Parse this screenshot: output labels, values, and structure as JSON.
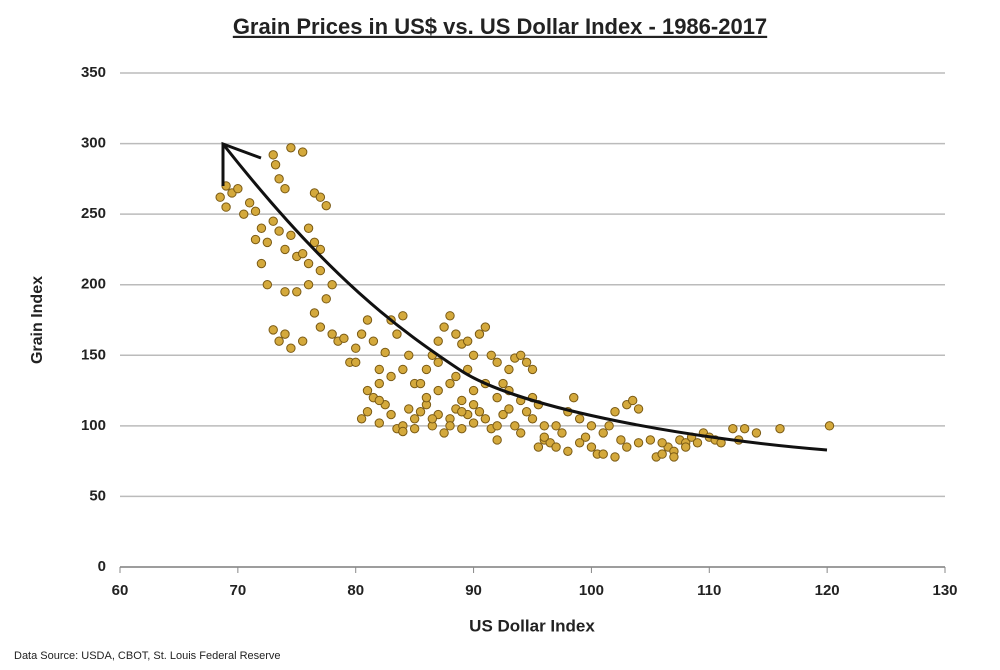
{
  "chart_data": {
    "type": "scatter",
    "title": "Grain Prices in US$ vs. US Dollar Index - 1986-2017",
    "xlabel": "US Dollar Index",
    "ylabel": "Grain Index",
    "source": "Data Source: USDA, CBOT, St. Louis Federal Reserve",
    "color": "#d4a93c",
    "grid": true,
    "xlim": [
      60,
      130
    ],
    "xticks": [
      60,
      70,
      80,
      90,
      100,
      110,
      120,
      130
    ],
    "ylim": [
      0,
      350
    ],
    "yticks": [
      0,
      50,
      100,
      150,
      200,
      250,
      300,
      350
    ],
    "x": [
      68.5,
      69,
      69.5,
      70,
      70.5,
      71,
      71.5,
      69,
      72,
      72.5,
      71.5,
      72,
      72.5,
      73,
      73.2,
      73.5,
      74,
      74.5,
      75.5,
      73,
      73.5,
      74,
      74.5,
      75,
      73,
      73.5,
      74,
      74.5,
      75,
      75.5,
      76,
      76.5,
      77,
      77.5,
      76.5,
      77,
      76,
      76.5,
      77,
      77.5,
      78,
      78.5,
      76,
      75.5,
      74,
      77,
      78,
      79,
      79.5,
      80,
      80.5,
      81,
      81.5,
      82,
      82.5,
      83,
      83.5,
      84,
      84.5,
      80.5,
      81,
      81.5,
      82,
      82.5,
      83,
      83.5,
      84,
      84.5,
      85,
      81,
      82,
      83,
      84,
      85,
      80,
      82,
      84,
      85,
      85.5,
      86,
      86.5,
      87,
      87.5,
      88,
      88.5,
      89,
      89.5,
      90,
      86,
      86.5,
      87,
      87.5,
      88,
      88.5,
      89,
      89.5,
      90,
      86,
      87,
      88,
      89,
      90,
      85.5,
      87,
      88.5,
      89.5,
      90,
      86.5,
      88,
      89,
      90.5,
      91,
      91.5,
      92,
      92.5,
      93,
      93.5,
      94,
      94.5,
      95,
      90.5,
      91,
      91.5,
      92,
      92.5,
      93,
      93.5,
      94,
      94.5,
      95,
      95.5,
      96,
      91,
      92,
      93,
      94,
      95,
      95.5,
      96,
      92,
      96.5,
      97,
      97.5,
      98,
      98.5,
      99,
      99.5,
      100,
      100.5,
      101,
      101.5,
      102,
      102.5,
      103,
      103.5,
      104,
      97,
      98,
      99,
      100,
      101,
      102,
      103,
      104,
      96,
      105,
      105.5,
      106,
      106.5,
      107,
      107.5,
      108,
      108.5,
      109,
      109.5,
      110,
      110.5,
      111,
      112,
      112.5,
      113,
      114,
      116,
      120.2,
      106,
      107,
      108
    ],
    "values": [
      262,
      270,
      265,
      268,
      250,
      258,
      252,
      255,
      240,
      230,
      232,
      215,
      200,
      292,
      285,
      275,
      268,
      297,
      294,
      245,
      238,
      225,
      235,
      220,
      168,
      160,
      165,
      155,
      195,
      160,
      240,
      265,
      262,
      256,
      230,
      225,
      200,
      180,
      170,
      190,
      165,
      160,
      215,
      222,
      195,
      210,
      200,
      162,
      145,
      155,
      165,
      175,
      160,
      140,
      152,
      175,
      165,
      178,
      150,
      105,
      110,
      120,
      102,
      115,
      108,
      98,
      100,
      112,
      105,
      125,
      130,
      135,
      140,
      130,
      145,
      118,
      96,
      98,
      110,
      115,
      100,
      108,
      95,
      105,
      112,
      98,
      108,
      102,
      140,
      150,
      160,
      170,
      178,
      165,
      158,
      160,
      150,
      120,
      125,
      130,
      118,
      125,
      130,
      145,
      135,
      140,
      115,
      105,
      100,
      110,
      165,
      170,
      150,
      145,
      130,
      140,
      148,
      150,
      145,
      140,
      110,
      105,
      98,
      90,
      108,
      112,
      100,
      95,
      110,
      105,
      115,
      100,
      130,
      120,
      125,
      118,
      120,
      85,
      90,
      100,
      88,
      85,
      95,
      110,
      120,
      105,
      92,
      85,
      80,
      95,
      100,
      110,
      90,
      115,
      118,
      112,
      100,
      82,
      88,
      100,
      80,
      78,
      85,
      88,
      92,
      90,
      78,
      80,
      85,
      82,
      90,
      88,
      92,
      88,
      95,
      92,
      90,
      88,
      98,
      90,
      98,
      95,
      98,
      100,
      88,
      78,
      85
    ]
  }
}
